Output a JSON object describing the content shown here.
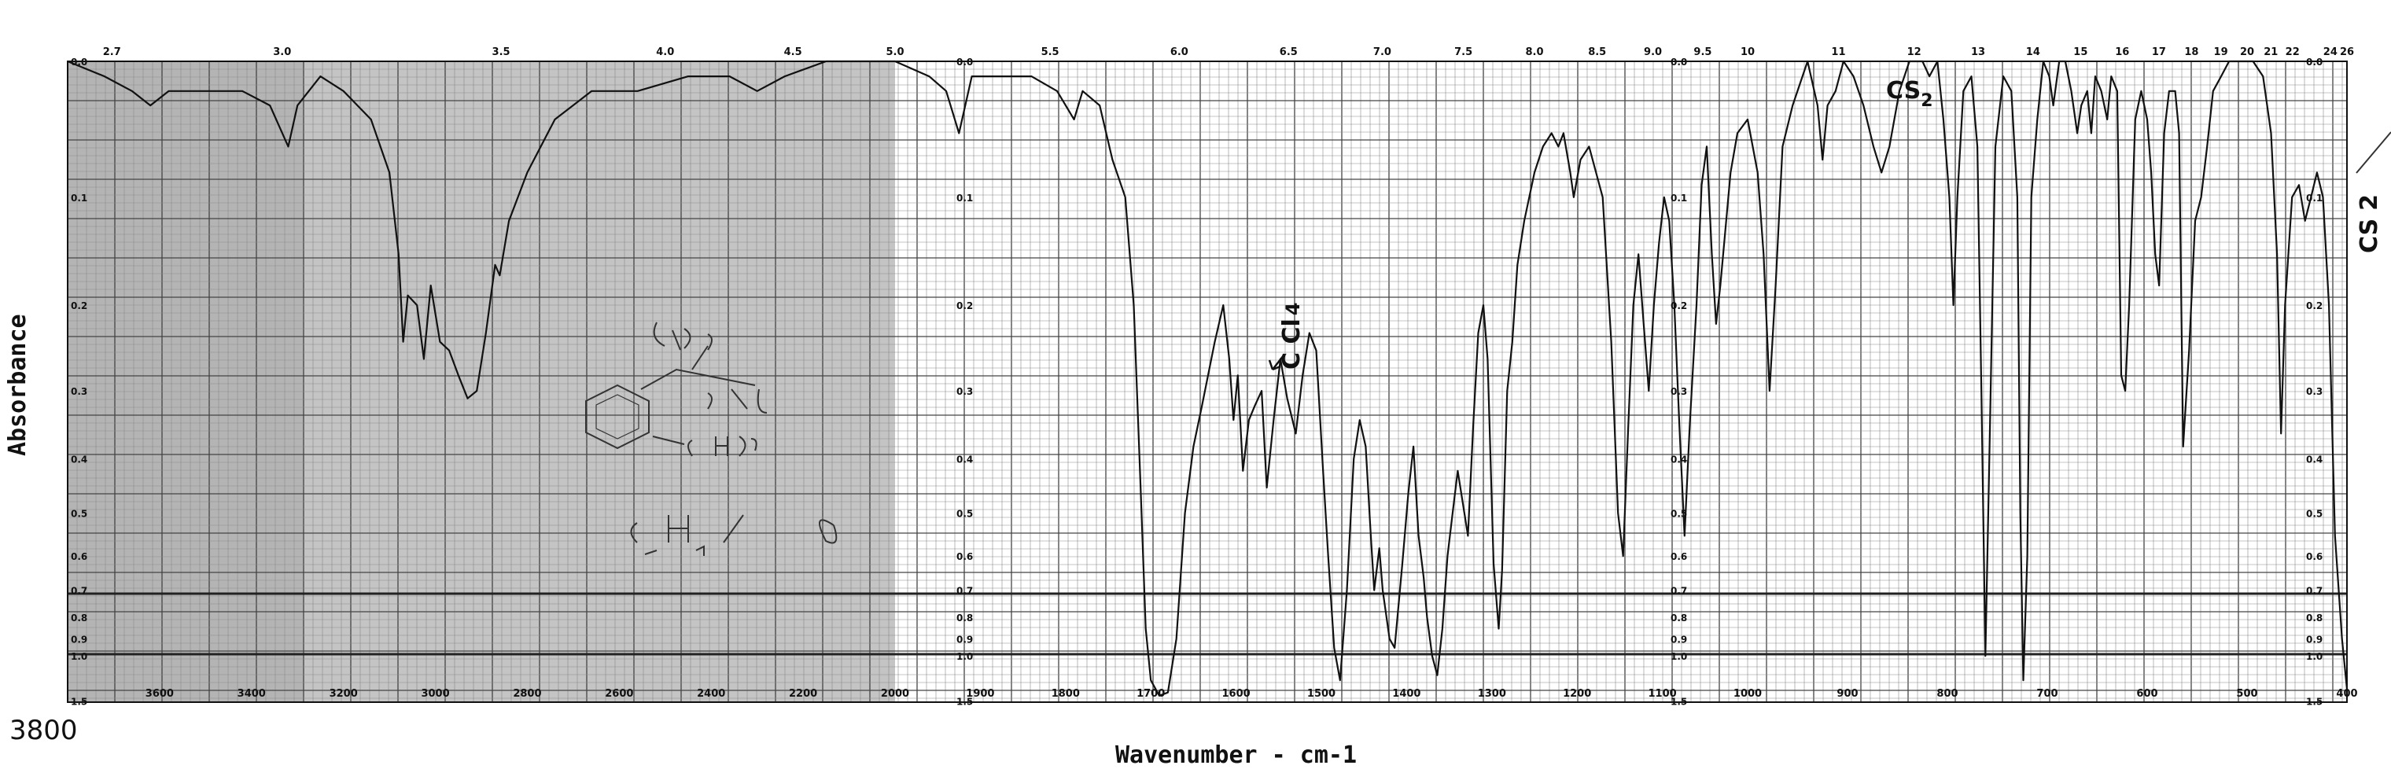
{
  "chart_data": {
    "type": "line",
    "xlabel": "Wavenumber - cm-1",
    "ylabel": "Absorbance",
    "x_bottom_ticks": [
      "3800",
      "3600",
      "3400",
      "3200",
      "3000",
      "2800",
      "2600",
      "2400",
      "2200",
      "2000",
      "1900",
      "1800",
      "1700",
      "1600",
      "1500",
      "1400",
      "1300",
      "1200",
      "1100",
      "1000",
      "900",
      "800",
      "700",
      "600",
      "500",
      "400"
    ],
    "x_top_ticks": [
      "2.7",
      "3.0",
      "3.5",
      "4.0",
      "4.5",
      "5.0",
      "5.5",
      "6.0",
      "6.5",
      "7.0",
      "7.5",
      "8.0",
      "8.5",
      "9.0",
      "9.5",
      "10",
      "11",
      "12",
      "13",
      "14",
      "15",
      "16",
      "17",
      "18",
      "19",
      "20",
      "21",
      "22",
      "24",
      "26"
    ],
    "y_ticks": [
      "0.0",
      "0.1",
      "0.2",
      "0.3",
      "0.4",
      "0.5",
      "0.6",
      "0.7",
      "0.8",
      "0.9",
      "1.0",
      "1.5"
    ],
    "x_start_label": "3800",
    "annotations": [
      {
        "text": "CS",
        "sub": "2",
        "region": "top-right"
      },
      {
        "text": "CS",
        "sub": "2",
        "region": "right-edge",
        "rotated": true
      },
      {
        "text": "C Cl",
        "sub": "4",
        "region": "center",
        "rotated": true
      }
    ],
    "line_color": "#111111",
    "grid_color": "#555555",
    "shaded_region_color": "#b0b0b0",
    "spectrum": [
      [
        3800,
        0.0
      ],
      [
        3720,
        0.01
      ],
      [
        3660,
        0.02
      ],
      [
        3620,
        0.03
      ],
      [
        3580,
        0.02
      ],
      [
        3500,
        0.02
      ],
      [
        3420,
        0.02
      ],
      [
        3360,
        0.03
      ],
      [
        3320,
        0.06
      ],
      [
        3300,
        0.03
      ],
      [
        3250,
        0.01
      ],
      [
        3200,
        0.02
      ],
      [
        3140,
        0.04
      ],
      [
        3100,
        0.08
      ],
      [
        3080,
        0.15
      ],
      [
        3070,
        0.24
      ],
      [
        3060,
        0.19
      ],
      [
        3040,
        0.2
      ],
      [
        3025,
        0.26
      ],
      [
        3010,
        0.18
      ],
      [
        2990,
        0.24
      ],
      [
        2970,
        0.25
      ],
      [
        2950,
        0.28
      ],
      [
        2930,
        0.31
      ],
      [
        2910,
        0.3
      ],
      [
        2890,
        0.23
      ],
      [
        2870,
        0.16
      ],
      [
        2860,
        0.17
      ],
      [
        2840,
        0.12
      ],
      [
        2800,
        0.08
      ],
      [
        2740,
        0.04
      ],
      [
        2660,
        0.02
      ],
      [
        2560,
        0.02
      ],
      [
        2450,
        0.01
      ],
      [
        2360,
        0.01
      ],
      [
        2300,
        0.02
      ],
      [
        2240,
        0.01
      ],
      [
        2150,
        0.0
      ],
      [
        2000,
        0.0
      ],
      [
        1960,
        0.01
      ],
      [
        1940,
        0.02
      ],
      [
        1925,
        0.05
      ],
      [
        1910,
        0.01
      ],
      [
        1880,
        0.01
      ],
      [
        1840,
        0.01
      ],
      [
        1810,
        0.02
      ],
      [
        1790,
        0.04
      ],
      [
        1780,
        0.02
      ],
      [
        1760,
        0.03
      ],
      [
        1745,
        0.07
      ],
      [
        1730,
        0.1
      ],
      [
        1720,
        0.2
      ],
      [
        1712,
        0.45
      ],
      [
        1706,
        0.85
      ],
      [
        1700,
        1.2
      ],
      [
        1690,
        1.4
      ],
      [
        1680,
        1.35
      ],
      [
        1670,
        0.9
      ],
      [
        1660,
        0.5
      ],
      [
        1650,
        0.38
      ],
      [
        1640,
        0.32
      ],
      [
        1625,
        0.24
      ],
      [
        1615,
        0.2
      ],
      [
        1608,
        0.26
      ],
      [
        1603,
        0.34
      ],
      [
        1598,
        0.28
      ],
      [
        1592,
        0.42
      ],
      [
        1585,
        0.34
      ],
      [
        1578,
        0.32
      ],
      [
        1570,
        0.3
      ],
      [
        1564,
        0.45
      ],
      [
        1556,
        0.34
      ],
      [
        1548,
        0.26
      ],
      [
        1540,
        0.31
      ],
      [
        1530,
        0.36
      ],
      [
        1522,
        0.28
      ],
      [
        1514,
        0.23
      ],
      [
        1506,
        0.25
      ],
      [
        1498,
        0.42
      ],
      [
        1492,
        0.6
      ],
      [
        1485,
        0.95
      ],
      [
        1478,
        1.2
      ],
      [
        1470,
        0.7
      ],
      [
        1462,
        0.4
      ],
      [
        1455,
        0.34
      ],
      [
        1448,
        0.38
      ],
      [
        1442,
        0.55
      ],
      [
        1438,
        0.7
      ],
      [
        1432,
        0.58
      ],
      [
        1428,
        0.7
      ],
      [
        1420,
        0.9
      ],
      [
        1414,
        0.95
      ],
      [
        1405,
        0.62
      ],
      [
        1398,
        0.46
      ],
      [
        1392,
        0.38
      ],
      [
        1386,
        0.55
      ],
      [
        1380,
        0.66
      ],
      [
        1376,
        0.8
      ],
      [
        1370,
        1.0
      ],
      [
        1364,
        1.15
      ],
      [
        1358,
        0.85
      ],
      [
        1352,
        0.6
      ],
      [
        1346,
        0.5
      ],
      [
        1340,
        0.42
      ],
      [
        1334,
        0.48
      ],
      [
        1328,
        0.55
      ],
      [
        1322,
        0.35
      ],
      [
        1316,
        0.23
      ],
      [
        1310,
        0.2
      ],
      [
        1305,
        0.26
      ],
      [
        1298,
        0.62
      ],
      [
        1292,
        0.85
      ],
      [
        1288,
        0.64
      ],
      [
        1282,
        0.3
      ],
      [
        1276,
        0.24
      ],
      [
        1270,
        0.16
      ],
      [
        1262,
        0.12
      ],
      [
        1250,
        0.08
      ],
      [
        1240,
        0.06
      ],
      [
        1230,
        0.05
      ],
      [
        1222,
        0.06
      ],
      [
        1216,
        0.05
      ],
      [
        1208,
        0.08
      ],
      [
        1204,
        0.1
      ],
      [
        1196,
        0.07
      ],
      [
        1186,
        0.06
      ],
      [
        1170,
        0.1
      ],
      [
        1160,
        0.24
      ],
      [
        1152,
        0.5
      ],
      [
        1146,
        0.6
      ],
      [
        1140,
        0.35
      ],
      [
        1134,
        0.2
      ],
      [
        1128,
        0.15
      ],
      [
        1122,
        0.22
      ],
      [
        1116,
        0.3
      ],
      [
        1110,
        0.2
      ],
      [
        1104,
        0.14
      ],
      [
        1098,
        0.1
      ],
      [
        1092,
        0.12
      ],
      [
        1086,
        0.2
      ],
      [
        1080,
        0.35
      ],
      [
        1074,
        0.55
      ],
      [
        1068,
        0.35
      ],
      [
        1060,
        0.2
      ],
      [
        1054,
        0.09
      ],
      [
        1048,
        0.06
      ],
      [
        1042,
        0.15
      ],
      [
        1037,
        0.22
      ],
      [
        1032,
        0.18
      ],
      [
        1020,
        0.08
      ],
      [
        1012,
        0.05
      ],
      [
        1000,
        0.04
      ],
      [
        990,
        0.08
      ],
      [
        984,
        0.15
      ],
      [
        978,
        0.3
      ],
      [
        972,
        0.18
      ],
      [
        965,
        0.06
      ],
      [
        955,
        0.03
      ],
      [
        940,
        0.0
      ],
      [
        930,
        0.03
      ],
      [
        925,
        0.07
      ],
      [
        920,
        0.03
      ],
      [
        912,
        0.02
      ],
      [
        904,
        0.0
      ],
      [
        894,
        0.01
      ],
      [
        884,
        0.03
      ],
      [
        874,
        0.06
      ],
      [
        866,
        0.08
      ],
      [
        858,
        0.06
      ],
      [
        848,
        0.02
      ],
      [
        838,
        0.0
      ],
      [
        825,
        0.0
      ],
      [
        818,
        0.01
      ],
      [
        810,
        0.0
      ],
      [
        804,
        0.04
      ],
      [
        798,
        0.1
      ],
      [
        794,
        0.2
      ],
      [
        790,
        0.1
      ],
      [
        784,
        0.02
      ],
      [
        776,
        0.01
      ],
      [
        770,
        0.06
      ],
      [
        766,
        0.3
      ],
      [
        762,
        1.0
      ],
      [
        758,
        0.4
      ],
      [
        752,
        0.06
      ],
      [
        744,
        0.01
      ],
      [
        736,
        0.02
      ],
      [
        730,
        0.1
      ],
      [
        727,
        0.5
      ],
      [
        724,
        1.2
      ],
      [
        720,
        0.6
      ],
      [
        716,
        0.1
      ],
      [
        710,
        0.04
      ],
      [
        704,
        0.0
      ],
      [
        698,
        0.01
      ],
      [
        694,
        0.03
      ],
      [
        688,
        0.0
      ],
      [
        682,
        0.0
      ],
      [
        676,
        0.02
      ],
      [
        670,
        0.05
      ],
      [
        666,
        0.03
      ],
      [
        660,
        0.02
      ],
      [
        656,
        0.05
      ],
      [
        652,
        0.01
      ],
      [
        646,
        0.02
      ],
      [
        640,
        0.04
      ],
      [
        636,
        0.01
      ],
      [
        630,
        0.02
      ],
      [
        626,
        0.28
      ],
      [
        622,
        0.3
      ],
      [
        618,
        0.2
      ],
      [
        612,
        0.04
      ],
      [
        606,
        0.02
      ],
      [
        600,
        0.04
      ],
      [
        596,
        0.08
      ],
      [
        592,
        0.15
      ],
      [
        588,
        0.18
      ],
      [
        583,
        0.05
      ],
      [
        578,
        0.02
      ],
      [
        572,
        0.02
      ],
      [
        568,
        0.05
      ],
      [
        564,
        0.38
      ],
      [
        558,
        0.25
      ],
      [
        552,
        0.12
      ],
      [
        546,
        0.1
      ],
      [
        540,
        0.06
      ],
      [
        534,
        0.02
      ],
      [
        526,
        0.01
      ],
      [
        518,
        0.0
      ],
      [
        506,
        0.0
      ],
      [
        494,
        0.0
      ],
      [
        484,
        0.01
      ],
      [
        476,
        0.05
      ],
      [
        470,
        0.15
      ],
      [
        466,
        0.36
      ],
      [
        462,
        0.2
      ],
      [
        455,
        0.1
      ],
      [
        448,
        0.09
      ],
      [
        442,
        0.12
      ],
      [
        436,
        0.1
      ],
      [
        430,
        0.08
      ],
      [
        424,
        0.1
      ],
      [
        418,
        0.2
      ],
      [
        412,
        0.55
      ],
      [
        405,
        0.9
      ],
      [
        400,
        1.3
      ]
    ]
  }
}
